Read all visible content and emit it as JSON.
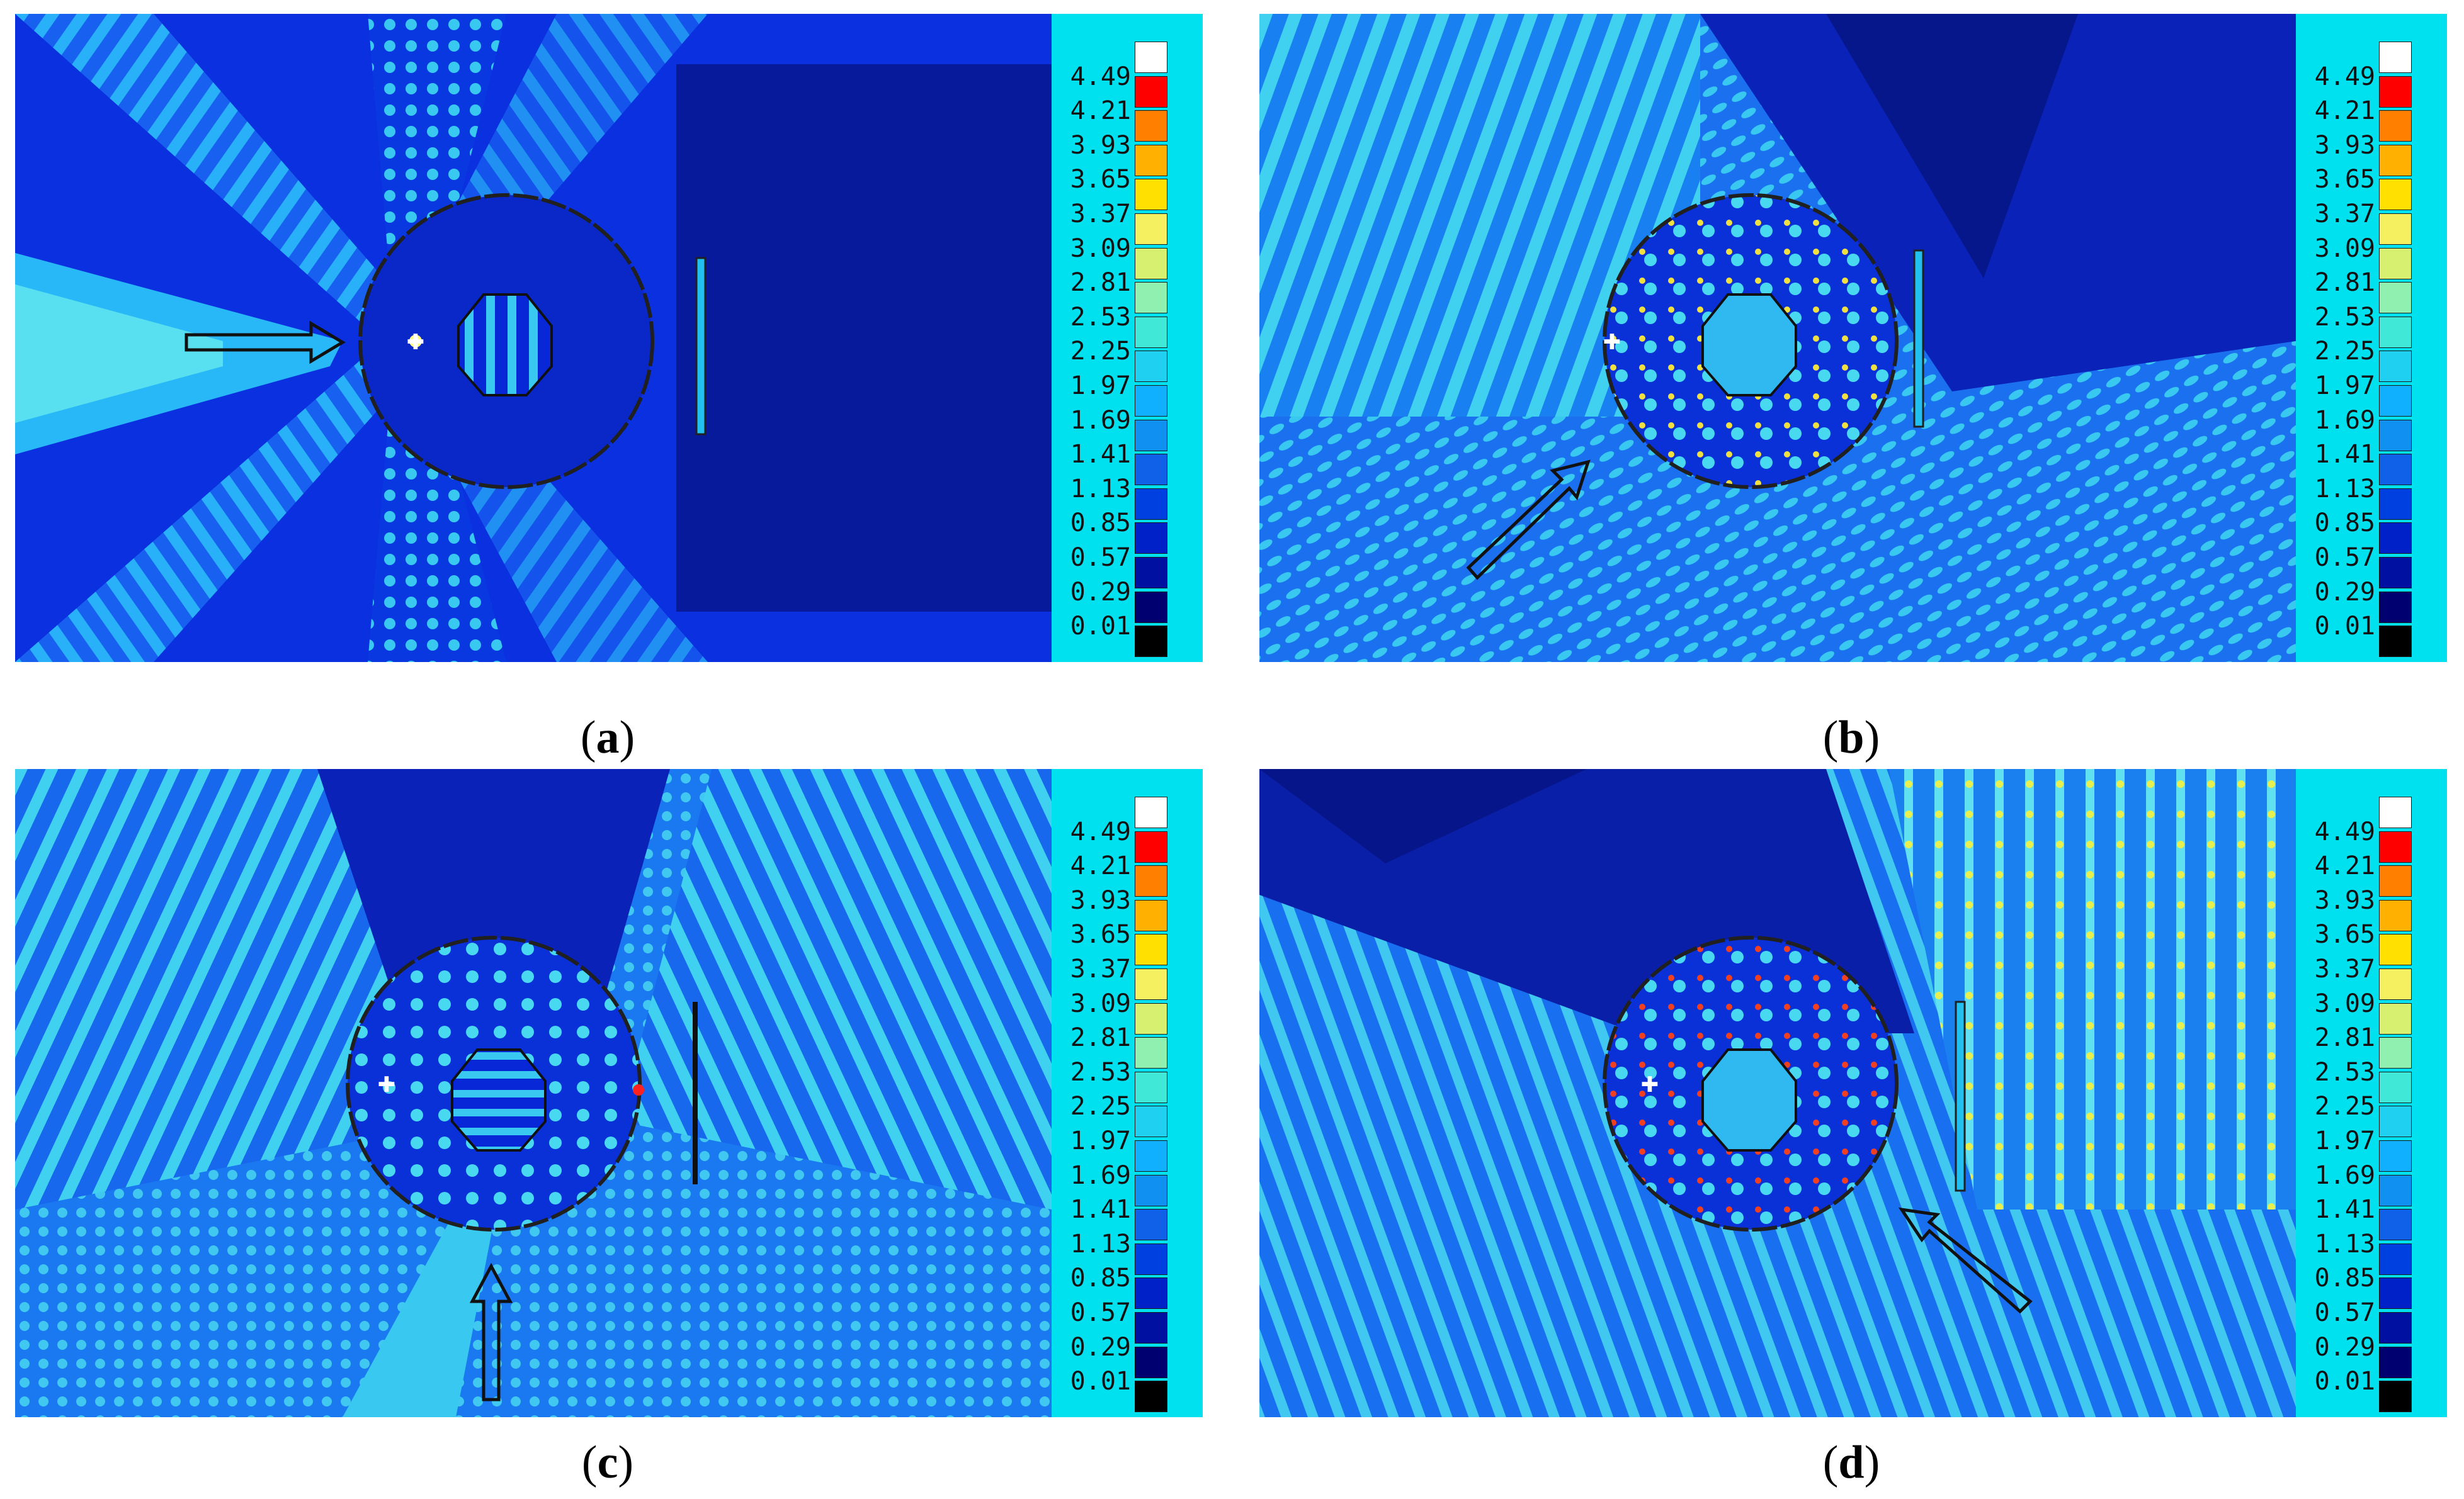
{
  "chart_data": [
    {
      "type": "heatmap",
      "panel": "a",
      "caption_letter": "a",
      "incident_direction": "from the left (0°)",
      "colorbar": {
        "labels": [
          "4.49",
          "4.21",
          "3.93",
          "3.65",
          "3.37",
          "3.09",
          "2.81",
          "2.53",
          "2.25",
          "1.97",
          "1.69",
          "1.41",
          "1.13",
          "0.85",
          "0.57",
          "0.29",
          "0.01"
        ],
        "colors": [
          "#ff0000",
          "#ff8000",
          "#ffb000",
          "#ffe000",
          "#f4f060",
          "#d8f070",
          "#90f0b0",
          "#40e8d8",
          "#20d0f0",
          "#10b0ff",
          "#1090f0",
          "#1060e8",
          "#0040e0",
          "#0020c8",
          "#0010a0",
          "#000070",
          "#000000"
        ],
        "top_color": "#ffffff"
      }
    },
    {
      "type": "heatmap",
      "panel": "b",
      "caption_letter": "b",
      "incident_direction": "from lower-left (45°)",
      "colorbar": {
        "labels": [
          "4.49",
          "4.21",
          "3.93",
          "3.65",
          "3.37",
          "3.09",
          "2.81",
          "2.53",
          "2.25",
          "1.97",
          "1.69",
          "1.41",
          "1.13",
          "0.85",
          "0.57",
          "0.29",
          "0.01"
        ],
        "colors": [
          "#ff0000",
          "#ff8000",
          "#ffb000",
          "#ffe000",
          "#f4f060",
          "#d8f070",
          "#90f0b0",
          "#40e8d8",
          "#20d0f0",
          "#10b0ff",
          "#1090f0",
          "#1060e8",
          "#0040e0",
          "#0020c8",
          "#0010a0",
          "#000070",
          "#000000"
        ],
        "top_color": "#ffffff"
      }
    },
    {
      "type": "heatmap",
      "panel": "c",
      "caption_letter": "c",
      "incident_direction": "from below (90°)",
      "colorbar": {
        "labels": [
          "4.49",
          "4.21",
          "3.93",
          "3.65",
          "3.37",
          "3.09",
          "2.81",
          "2.53",
          "2.25",
          "1.97",
          "1.69",
          "1.41",
          "1.13",
          "0.85",
          "0.57",
          "0.29",
          "0.01"
        ],
        "colors": [
          "#ff0000",
          "#ff8000",
          "#ffb000",
          "#ffe000",
          "#f4f060",
          "#d8f070",
          "#90f0b0",
          "#40e8d8",
          "#20d0f0",
          "#10b0ff",
          "#1090f0",
          "#1060e8",
          "#0040e0",
          "#0020c8",
          "#0010a0",
          "#000070",
          "#000000"
        ],
        "top_color": "#ffffff"
      }
    },
    {
      "type": "heatmap",
      "panel": "d",
      "caption_letter": "d",
      "incident_direction": "from lower-right (135°)",
      "colorbar": {
        "labels": [
          "4.49",
          "4.21",
          "3.93",
          "3.65",
          "3.37",
          "3.09",
          "2.81",
          "2.53",
          "2.25",
          "1.97",
          "1.69",
          "1.41",
          "1.13",
          "0.85",
          "0.57",
          "0.29",
          "0.01"
        ],
        "colors": [
          "#ff0000",
          "#ff8000",
          "#ffb000",
          "#ffe000",
          "#f4f060",
          "#d8f070",
          "#90f0b0",
          "#40e8d8",
          "#20d0f0",
          "#10b0ff",
          "#1090f0",
          "#1060e8",
          "#0040e0",
          "#0020c8",
          "#0010a0",
          "#000070",
          "#000000"
        ],
        "top_color": "#ffffff"
      }
    }
  ]
}
